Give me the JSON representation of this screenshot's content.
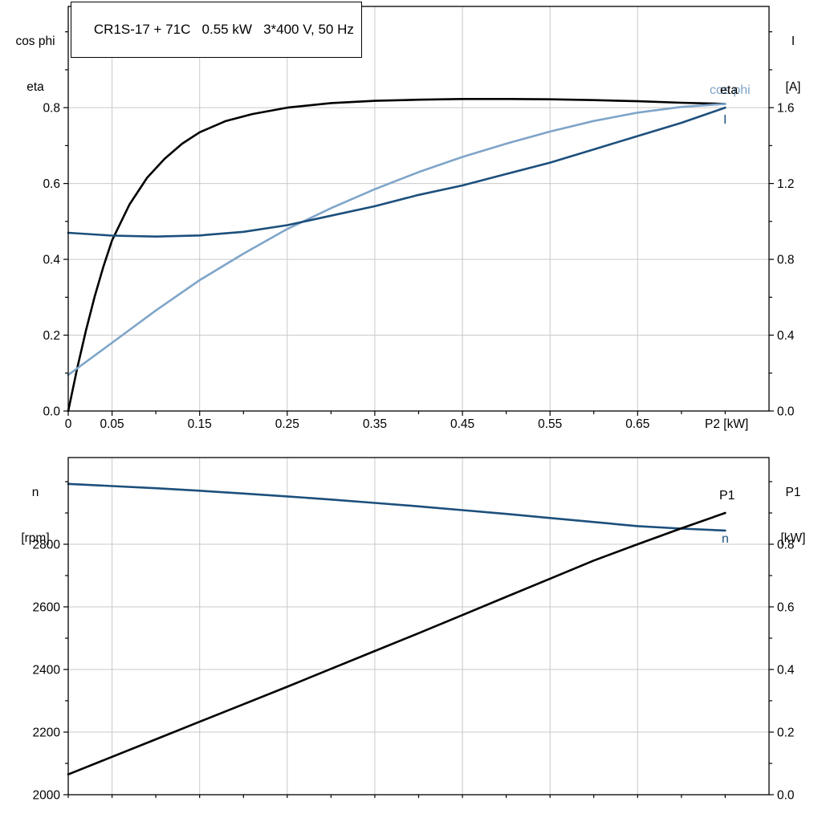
{
  "header": {
    "title": "CR1S-17 + 71C   0.55 kW   3*400 V, 50 Hz"
  },
  "colors": {
    "black": "#000000",
    "dark_blue": "#1c4f7c",
    "light_blue": "#7fa5c9",
    "grid": "#c9c9c9",
    "axis": "#000000",
    "background": "#ffffff"
  },
  "top_chart": {
    "left_axis_title_line1": "cos phi",
    "left_axis_title_line2": "eta",
    "right_axis_title_line1": "I",
    "right_axis_title_line2": "[A]",
    "x_axis_label": "P2 [kW]",
    "labels": {
      "eta": "eta",
      "cos_phi": "cos phi",
      "current": "I"
    }
  },
  "bottom_chart": {
    "left_axis_title_line1": "n",
    "left_axis_title_line2": "[rpm]",
    "right_axis_title_line1": "P1",
    "right_axis_title_line2": "[kW]",
    "labels": {
      "speed": "n",
      "power_in": "P1"
    }
  },
  "chart_data": [
    {
      "type": "line",
      "title": "CR1S-17 + 71C   0.55 kW   3*400 V, 50 Hz",
      "xlabel": "P2 [kW]",
      "x_range": [
        0,
        0.8
      ],
      "x_ticks": [
        {
          "v": 0,
          "label": "0"
        },
        {
          "v": 0.05,
          "label": "0.05"
        },
        {
          "v": 0.1
        },
        {
          "v": 0.15,
          "label": "0.15"
        },
        {
          "v": 0.2
        },
        {
          "v": 0.25,
          "label": "0.25"
        },
        {
          "v": 0.3
        },
        {
          "v": 0.35,
          "label": "0.35"
        },
        {
          "v": 0.4
        },
        {
          "v": 0.45,
          "label": "0.45"
        },
        {
          "v": 0.5
        },
        {
          "v": 0.55,
          "label": "0.55"
        },
        {
          "v": 0.6
        },
        {
          "v": 0.65,
          "label": "0.65"
        },
        {
          "v": 0.7
        },
        {
          "v": 0.75
        }
      ],
      "y_left": {
        "title": "cos phi / eta",
        "range": [
          0,
          1.067
        ],
        "ticks": [
          {
            "v": 0,
            "label": "0.0"
          },
          {
            "v": 0.1
          },
          {
            "v": 0.2,
            "label": "0.2"
          },
          {
            "v": 0.3
          },
          {
            "v": 0.4,
            "label": "0.4"
          },
          {
            "v": 0.5
          },
          {
            "v": 0.6,
            "label": "0.6"
          },
          {
            "v": 0.7
          },
          {
            "v": 0.8,
            "label": "0.8"
          },
          {
            "v": 0.9
          },
          {
            "v": 1.0
          }
        ]
      },
      "y_right": {
        "title": "I [A]",
        "range": [
          0,
          2.134
        ],
        "ticks": [
          {
            "v": 0,
            "label": "0.0"
          },
          {
            "v": 0.2
          },
          {
            "v": 0.4,
            "label": "0.4"
          },
          {
            "v": 0.6
          },
          {
            "v": 0.8,
            "label": "0.8"
          },
          {
            "v": 1.0
          },
          {
            "v": 1.2,
            "label": "1.2"
          },
          {
            "v": 1.4
          },
          {
            "v": 1.6,
            "label": "1.6"
          },
          {
            "v": 1.8
          },
          {
            "v": 2.0
          }
        ]
      },
      "series": [
        {
          "name": "eta",
          "axis": "left",
          "color_key": "black",
          "x": [
            0,
            0.01,
            0.02,
            0.03,
            0.04,
            0.05,
            0.07,
            0.09,
            0.11,
            0.13,
            0.15,
            0.18,
            0.21,
            0.25,
            0.3,
            0.35,
            0.4,
            0.45,
            0.5,
            0.55,
            0.6,
            0.65,
            0.7,
            0.75
          ],
          "y": [
            0,
            0.11,
            0.21,
            0.3,
            0.38,
            0.45,
            0.545,
            0.615,
            0.665,
            0.705,
            0.735,
            0.765,
            0.783,
            0.8,
            0.812,
            0.818,
            0.821,
            0.823,
            0.823,
            0.822,
            0.82,
            0.817,
            0.813,
            0.81
          ]
        },
        {
          "name": "cos phi",
          "axis": "left",
          "color_key": "light_blue",
          "x": [
            0,
            0.05,
            0.1,
            0.15,
            0.2,
            0.25,
            0.3,
            0.35,
            0.4,
            0.45,
            0.5,
            0.55,
            0.6,
            0.65,
            0.7,
            0.75
          ],
          "y": [
            0.095,
            0.18,
            0.265,
            0.345,
            0.415,
            0.48,
            0.535,
            0.585,
            0.63,
            0.67,
            0.705,
            0.737,
            0.765,
            0.787,
            0.802,
            0.81
          ]
        },
        {
          "name": "I",
          "axis": "right",
          "color_key": "dark_blue",
          "x": [
            0,
            0.05,
            0.1,
            0.15,
            0.2,
            0.25,
            0.3,
            0.35,
            0.4,
            0.45,
            0.5,
            0.55,
            0.6,
            0.65,
            0.7,
            0.75
          ],
          "y": [
            0.94,
            0.925,
            0.92,
            0.926,
            0.945,
            0.98,
            1.03,
            1.08,
            1.14,
            1.19,
            1.25,
            1.31,
            1.38,
            1.45,
            1.52,
            1.6
          ]
        }
      ]
    },
    {
      "type": "line",
      "title": "",
      "xlabel": "",
      "x_range": [
        0,
        0.8
      ],
      "x_ticks": [
        {
          "v": 0
        },
        {
          "v": 0.05
        },
        {
          "v": 0.1
        },
        {
          "v": 0.15
        },
        {
          "v": 0.2
        },
        {
          "v": 0.25
        },
        {
          "v": 0.3
        },
        {
          "v": 0.35
        },
        {
          "v": 0.4
        },
        {
          "v": 0.45
        },
        {
          "v": 0.5
        },
        {
          "v": 0.55
        },
        {
          "v": 0.6
        },
        {
          "v": 0.65
        },
        {
          "v": 0.7
        },
        {
          "v": 0.75
        }
      ],
      "grid_x": [
        0.05,
        0.15,
        0.25,
        0.35,
        0.45,
        0.55,
        0.65
      ],
      "y_left": {
        "title": "n [rpm]",
        "range": [
          2000,
          3077
        ],
        "ticks": [
          {
            "v": 2000,
            "label": "2000"
          },
          {
            "v": 2100
          },
          {
            "v": 2200,
            "label": "2200"
          },
          {
            "v": 2300
          },
          {
            "v": 2400,
            "label": "2400"
          },
          {
            "v": 2500
          },
          {
            "v": 2600,
            "label": "2600"
          },
          {
            "v": 2700
          },
          {
            "v": 2800,
            "label": "2800"
          },
          {
            "v": 2900
          },
          {
            "v": 3000
          }
        ]
      },
      "y_right": {
        "title": "P1 [kW]",
        "range": [
          0,
          1.077
        ],
        "ticks": [
          {
            "v": 0,
            "label": "0.0"
          },
          {
            "v": 0.1
          },
          {
            "v": 0.2,
            "label": "0.2"
          },
          {
            "v": 0.3
          },
          {
            "v": 0.4,
            "label": "0.4"
          },
          {
            "v": 0.5
          },
          {
            "v": 0.6,
            "label": "0.6"
          },
          {
            "v": 0.7
          },
          {
            "v": 0.8,
            "label": "0.8"
          },
          {
            "v": 0.9
          },
          {
            "v": 1.0
          }
        ]
      },
      "series": [
        {
          "name": "n",
          "axis": "left",
          "color_key": "dark_blue",
          "x": [
            0,
            0.05,
            0.1,
            0.15,
            0.2,
            0.25,
            0.3,
            0.35,
            0.4,
            0.45,
            0.5,
            0.55,
            0.6,
            0.65,
            0.7,
            0.75
          ],
          "y": [
            2993,
            2986,
            2979,
            2971,
            2962,
            2953,
            2943,
            2932,
            2921,
            2909,
            2897,
            2884,
            2871,
            2858,
            2850,
            2844
          ]
        },
        {
          "name": "P1",
          "axis": "right",
          "color_key": "black",
          "x": [
            0,
            0.05,
            0.1,
            0.15,
            0.2,
            0.25,
            0.3,
            0.35,
            0.4,
            0.45,
            0.5,
            0.55,
            0.6,
            0.65,
            0.7,
            0.75
          ],
          "y": [
            0.065,
            0.121,
            0.177,
            0.233,
            0.289,
            0.345,
            0.402,
            0.459,
            0.516,
            0.574,
            0.632,
            0.69,
            0.748,
            0.8,
            0.851,
            0.9
          ]
        }
      ]
    }
  ]
}
